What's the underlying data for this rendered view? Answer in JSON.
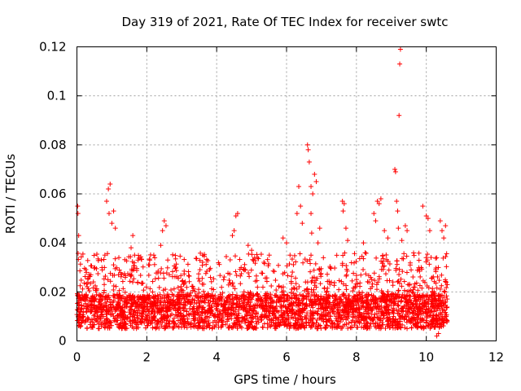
{
  "chart_data": {
    "type": "scatter",
    "title": "Day 319 of 2021, Rate Of TEC Index for receiver swtc",
    "xlabel": "GPS time / hours",
    "ylabel": "ROTI / TECUs",
    "xlim": [
      0,
      12
    ],
    "ylim": [
      0,
      0.12
    ],
    "x_ticks": [
      0,
      2,
      4,
      6,
      8,
      10,
      12
    ],
    "x_tick_labels": [
      "0",
      "2",
      "4",
      "6",
      "8",
      "10",
      "12"
    ],
    "y_ticks": [
      0,
      0.02,
      0.04,
      0.06,
      0.08,
      0.1,
      0.12
    ],
    "y_tick_labels": [
      "0",
      "0.02",
      "0.04",
      "0.06",
      "0.08",
      "0.1",
      "0.12"
    ],
    "grid": true,
    "marker": "+",
    "color": "#ff0000",
    "x_data_range": [
      0.0,
      10.6
    ],
    "series": [
      {
        "name": "ROTI",
        "points": [
          [
            0.02,
            0.055
          ],
          [
            0.03,
            0.052
          ],
          [
            0.05,
            0.043
          ],
          [
            0.06,
            0.018
          ],
          [
            0.1,
            0.012
          ],
          [
            0.85,
            0.057
          ],
          [
            0.9,
            0.062
          ],
          [
            0.95,
            0.064
          ],
          [
            0.92,
            0.052
          ],
          [
            1.0,
            0.048
          ],
          [
            1.05,
            0.053
          ],
          [
            1.1,
            0.046
          ],
          [
            0.8,
            0.035
          ],
          [
            1.2,
            0.034
          ],
          [
            1.6,
            0.043
          ],
          [
            1.55,
            0.038
          ],
          [
            1.65,
            0.035
          ],
          [
            2.5,
            0.049
          ],
          [
            2.55,
            0.047
          ],
          [
            2.45,
            0.045
          ],
          [
            2.4,
            0.039
          ],
          [
            2.2,
            0.035
          ],
          [
            2.6,
            0.033
          ],
          [
            4.5,
            0.045
          ],
          [
            4.55,
            0.051
          ],
          [
            4.6,
            0.052
          ],
          [
            4.45,
            0.043
          ],
          [
            4.9,
            0.039
          ],
          [
            5.0,
            0.037
          ],
          [
            5.9,
            0.042
          ],
          [
            6.0,
            0.04
          ],
          [
            6.1,
            0.035
          ],
          [
            6.3,
            0.052
          ],
          [
            6.35,
            0.063
          ],
          [
            6.4,
            0.055
          ],
          [
            6.45,
            0.048
          ],
          [
            6.6,
            0.08
          ],
          [
            6.62,
            0.078
          ],
          [
            6.65,
            0.073
          ],
          [
            6.7,
            0.063
          ],
          [
            6.75,
            0.06
          ],
          [
            6.8,
            0.068
          ],
          [
            6.85,
            0.065
          ],
          [
            6.7,
            0.052
          ],
          [
            6.72,
            0.044
          ],
          [
            6.9,
            0.04
          ],
          [
            6.95,
            0.046
          ],
          [
            7.6,
            0.057
          ],
          [
            7.65,
            0.056
          ],
          [
            7.62,
            0.053
          ],
          [
            7.7,
            0.046
          ],
          [
            7.75,
            0.041
          ],
          [
            8.2,
            0.04
          ],
          [
            8.25,
            0.036
          ],
          [
            8.5,
            0.052
          ],
          [
            8.6,
            0.057
          ],
          [
            8.65,
            0.056
          ],
          [
            8.7,
            0.058
          ],
          [
            8.55,
            0.049
          ],
          [
            8.8,
            0.045
          ],
          [
            8.9,
            0.042
          ],
          [
            9.1,
            0.07
          ],
          [
            9.12,
            0.069
          ],
          [
            9.15,
            0.057
          ],
          [
            9.18,
            0.053
          ],
          [
            9.2,
            0.046
          ],
          [
            9.22,
            0.092
          ],
          [
            9.24,
            0.113
          ],
          [
            9.26,
            0.119
          ],
          [
            9.4,
            0.047
          ],
          [
            9.45,
            0.045
          ],
          [
            9.3,
            0.041
          ],
          [
            9.9,
            0.055
          ],
          [
            10.0,
            0.051
          ],
          [
            10.05,
            0.05
          ],
          [
            10.1,
            0.045
          ],
          [
            10.3,
            0.002
          ],
          [
            10.35,
            0.003
          ],
          [
            10.4,
            0.049
          ],
          [
            10.45,
            0.045
          ],
          [
            10.5,
            0.042
          ],
          [
            10.55,
            0.047
          ]
        ],
        "bulk_band": {
          "x_start": 0.0,
          "x_end": 10.6,
          "typical_min": 0.005,
          "typical_max": 0.03,
          "center": 0.013
        }
      }
    ]
  }
}
